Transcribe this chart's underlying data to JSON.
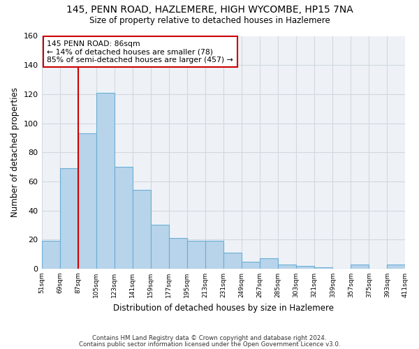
{
  "title1": "145, PENN ROAD, HAZLEMERE, HIGH WYCOMBE, HP15 7NA",
  "title2": "Size of property relative to detached houses in Hazlemere",
  "xlabel": "Distribution of detached houses by size in Hazlemere",
  "ylabel": "Number of detached properties",
  "footnote1": "Contains HM Land Registry data © Crown copyright and database right 2024.",
  "footnote2": "Contains public sector information licensed under the Open Government Licence v3.0.",
  "bar_values": [
    19,
    69,
    93,
    121,
    70,
    54,
    30,
    21,
    19,
    19,
    11,
    5,
    7,
    3,
    2,
    1,
    0,
    3,
    0,
    3
  ],
  "bar_labels": [
    "51sqm",
    "69sqm",
    "87sqm",
    "105sqm",
    "123sqm",
    "141sqm",
    "159sqm",
    "177sqm",
    "195sqm",
    "213sqm",
    "231sqm",
    "249sqm",
    "267sqm",
    "285sqm",
    "303sqm",
    "321sqm",
    "339sqm",
    "357sqm",
    "375sqm",
    "393sqm",
    "411sqm"
  ],
  "bar_color": "#b8d4ea",
  "bar_edge_color": "#6aaed6",
  "annotation_line1": "145 PENN ROAD: 86sqm",
  "annotation_line2": "← 14% of detached houses are smaller (78)",
  "annotation_line3": "85% of semi-detached houses are larger (457) →",
  "annotation_box_facecolor": "white",
  "annotation_box_edgecolor": "#cc0000",
  "vline_color": "#cc0000",
  "vline_x": 2.0,
  "ylim": [
    0,
    160
  ],
  "yticks": [
    0,
    20,
    40,
    60,
    80,
    100,
    120,
    140,
    160
  ],
  "grid_color": "#d0d8e0",
  "bg_color": "#eef2f7"
}
